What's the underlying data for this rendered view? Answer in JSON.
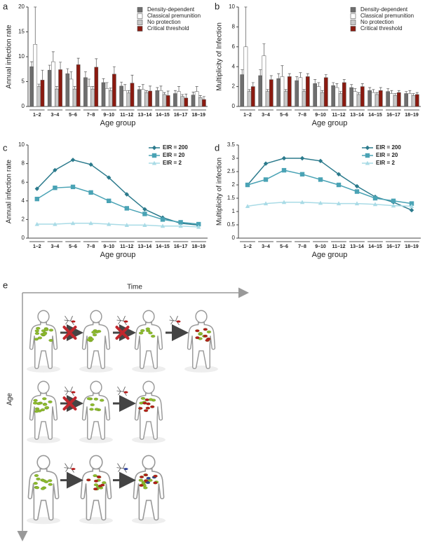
{
  "chart_data": [
    {
      "type": "bar",
      "panel_label": "a",
      "y_label": "Annual infection rate",
      "x_label": "Age group",
      "categories": [
        "1–2",
        "3–4",
        "5–6",
        "7–8",
        "9–10",
        "11–12",
        "13–14",
        "14–15",
        "16–17",
        "18–19"
      ],
      "series": [
        {
          "name": "Density-dependent",
          "color": "#6e6e6e",
          "values": [
            8,
            7.3,
            6.6,
            5.8,
            4.8,
            4.1,
            3.4,
            3.2,
            2.6,
            2.3
          ],
          "errors": [
            1,
            1,
            1,
            1.2,
            0.8,
            0.8,
            0.6,
            0.6,
            0.6,
            0.6
          ]
        },
        {
          "name": "Classical premunition",
          "color": "#ffffff",
          "values": [
            12.5,
            9,
            5.5,
            4,
            3.6,
            3.2,
            3.4,
            3.2,
            3,
            3
          ],
          "errors": [
            7.5,
            2,
            1.5,
            1.5,
            1.2,
            1.2,
            1,
            0.9,
            1,
            1
          ]
        },
        {
          "name": "No protection",
          "color": "#c8c8c8",
          "values": [
            4,
            3.5,
            3.5,
            3.5,
            3.2,
            2.7,
            2.8,
            2.4,
            2,
            1.8
          ],
          "errors": [
            0.5,
            0.5,
            0.5,
            0.5,
            0.5,
            0.5,
            0.4,
            0.4,
            0.4,
            0.4
          ]
        },
        {
          "name": "Critical threshold",
          "color": "#8b1a10",
          "values": [
            5.3,
            7.4,
            8.4,
            7.9,
            6.5,
            4.7,
            3.1,
            2.2,
            1.7,
            1.4
          ],
          "errors": [
            2,
            1.5,
            1.3,
            1.7,
            1.5,
            1.6,
            1,
            0.9,
            0.8,
            0.6
          ]
        }
      ],
      "ylim": [
        0,
        20
      ],
      "yticks": [
        0,
        5,
        10,
        15,
        20
      ],
      "legend": "upper right"
    },
    {
      "type": "bar",
      "panel_label": "b",
      "y_label": "Multiplicity of Infection",
      "x_label": "Age group",
      "categories": [
        "1–2",
        "3–4",
        "5–6",
        "7–8",
        "9–10",
        "11–12",
        "13–14",
        "14–15",
        "16–17",
        "18–19"
      ],
      "series": [
        {
          "name": "Density-dependent",
          "color": "#6e6e6e",
          "values": [
            3.2,
            3.1,
            2.8,
            2.6,
            2.3,
            2.1,
            1.9,
            1.6,
            1.5,
            1.3
          ],
          "errors": [
            0.5,
            0.6,
            0.5,
            0.4,
            0.4,
            0.3,
            0.3,
            0.3,
            0.3,
            0.2
          ]
        },
        {
          "name": "Classical premunition",
          "color": "#ffffff",
          "values": [
            6,
            5.1,
            3,
            2.9,
            2,
            1.9,
            1.5,
            1.4,
            1.3,
            1.3
          ],
          "errors": [
            4,
            1.2,
            1.1,
            0.5,
            0.4,
            0.4,
            0.3,
            0.3,
            0.3,
            0.3
          ]
        },
        {
          "name": "No protection",
          "color": "#c8c8c8",
          "values": [
            1.5,
            1.5,
            1.5,
            1.5,
            1.4,
            1.3,
            1.2,
            1.2,
            1.1,
            1.1
          ],
          "errors": [
            0.2,
            0.2,
            0.2,
            0.2,
            0.2,
            0.2,
            0.2,
            0.2,
            0.2,
            0.2
          ]
        },
        {
          "name": "Critical threshold",
          "color": "#8b1a10",
          "values": [
            2,
            2.7,
            3,
            3,
            2.9,
            2.4,
            2,
            1.6,
            1.4,
            1.2
          ],
          "errors": [
            0.4,
            0.4,
            0.3,
            0.3,
            0.3,
            0.3,
            0.3,
            0.3,
            0.2,
            0.2
          ]
        }
      ],
      "ylim": [
        0,
        10
      ],
      "yticks": [
        0,
        2,
        4,
        6,
        8,
        10
      ],
      "legend": "upper right"
    },
    {
      "type": "line",
      "panel_label": "c",
      "y_label": "Annual infection rate",
      "x_label": "Age group",
      "categories": [
        "1–2",
        "3–4",
        "5–6",
        "7–8",
        "9–10",
        "11–12",
        "13–14",
        "14–15",
        "16–17",
        "18–19"
      ],
      "series": [
        {
          "name": "EIR = 200",
          "color": "#2b7a8c",
          "marker": "diamond",
          "values": [
            5.3,
            7.3,
            8.4,
            7.9,
            6.5,
            4.7,
            3.1,
            2.2,
            1.6,
            1.4
          ]
        },
        {
          "name": "EIR = 20",
          "color": "#4aa3b5",
          "marker": "square",
          "values": [
            4.2,
            5.4,
            5.5,
            4.9,
            4,
            3.2,
            2.6,
            2,
            1.7,
            1.5
          ]
        },
        {
          "name": "EIR = 2",
          "color": "#a9dbe6",
          "marker": "triangle",
          "values": [
            1.5,
            1.5,
            1.6,
            1.6,
            1.5,
            1.4,
            1.4,
            1.3,
            1.3,
            1.2
          ]
        }
      ],
      "ylim": [
        0,
        10
      ],
      "yticks": [
        0,
        2,
        4,
        6,
        8,
        10
      ],
      "legend": "upper right"
    },
    {
      "type": "line",
      "panel_label": "d",
      "y_label": "Multiplicity of infection",
      "x_label": "Age group",
      "categories": [
        "1–2",
        "3–4",
        "5–6",
        "7–8",
        "9–10",
        "11–12",
        "13–14",
        "14–15",
        "16–17",
        "18–19"
      ],
      "series": [
        {
          "name": "EIR = 200",
          "color": "#2b7a8c",
          "marker": "diamond",
          "values": [
            2,
            2.8,
            3,
            3,
            2.9,
            2.4,
            1.95,
            1.55,
            1.35,
            1.05
          ]
        },
        {
          "name": "EIR = 20",
          "color": "#4aa3b5",
          "marker": "square",
          "values": [
            2,
            2.2,
            2.55,
            2.4,
            2.2,
            2,
            1.75,
            1.5,
            1.4,
            1.3
          ]
        },
        {
          "name": "EIR = 2",
          "color": "#a9dbe6",
          "marker": "triangle",
          "values": [
            1.2,
            1.3,
            1.35,
            1.35,
            1.32,
            1.3,
            1.3,
            1.27,
            1.22,
            1.2
          ]
        }
      ],
      "ylim": [
        0,
        3.5
      ],
      "yticks": [
        0,
        0.5,
        1,
        1.5,
        2,
        2.5,
        3,
        3.5
      ],
      "legend": "upper right"
    }
  ],
  "diagram": {
    "panel_label": "e",
    "x_label": "Time",
    "y_label": "Age"
  }
}
